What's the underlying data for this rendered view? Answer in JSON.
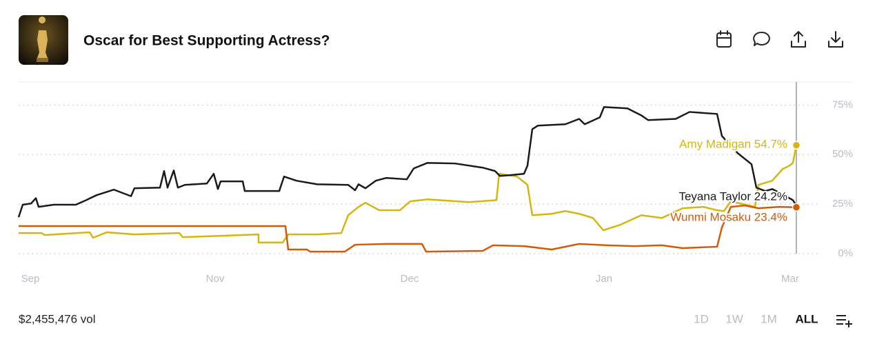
{
  "header": {
    "title": "Oscar for Best Supporting Actress?"
  },
  "chart_data": {
    "type": "line",
    "xlim": [
      0,
      1128
    ],
    "xticks": [
      {
        "value": 17,
        "label": "Sep"
      },
      {
        "value": 285,
        "label": "Nov"
      },
      {
        "value": 567,
        "label": "Dec"
      },
      {
        "value": 849,
        "label": "Jan"
      },
      {
        "value": 1119,
        "label": "Mar"
      }
    ],
    "ylim": [
      0,
      80
    ],
    "yticks": [
      {
        "value": 0,
        "label": "0%"
      },
      {
        "value": 25,
        "label": "25%"
      },
      {
        "value": 50,
        "label": "50%"
      },
      {
        "value": 75,
        "label": "75%"
      }
    ],
    "grid": true,
    "series": [
      {
        "name": "Amy Madigan",
        "color": "#d6b60e",
        "end_label": "54.7%",
        "x": [
          0,
          33,
          38,
          103,
          108,
          128,
          168,
          233,
          238,
          348,
          348,
          383,
          391,
          433,
          468,
          478,
          493,
          503,
          523,
          553,
          568,
          593,
          653,
          693,
          697,
          723,
          738,
          745,
          773,
          793,
          813,
          833,
          848,
          873,
          903,
          933,
          963,
          993,
          1013,
          1023,
          1033,
          1068,
          1073,
          1093,
          1108,
          1118,
          1123,
          1128
        ],
        "values": [
          10.4,
          10.4,
          9.4,
          10.8,
          8,
          10.8,
          9.7,
          10.4,
          8.3,
          9.7,
          5.6,
          5.6,
          9.7,
          9.7,
          10.4,
          19.4,
          23.6,
          25.7,
          21.9,
          21.9,
          26.4,
          27.4,
          26,
          27,
          40.3,
          38.9,
          34.7,
          19.4,
          20.1,
          21.5,
          20.1,
          18,
          11.8,
          14.6,
          19.4,
          18,
          22.9,
          23.6,
          21.9,
          21.5,
          26.4,
          23.6,
          34.7,
          36.8,
          42.7,
          44.4,
          45.8,
          54.7
        ]
      },
      {
        "name": "Teyana Taylor",
        "color": "#1a1a1a",
        "end_label": "24.2%",
        "x": [
          0,
          6,
          18,
          25,
          29,
          51,
          83,
          98,
          113,
          138,
          163,
          168,
          205,
          211,
          216,
          225,
          231,
          241,
          273,
          283,
          289,
          293,
          325,
          328,
          378,
          385,
          403,
          433,
          478,
          488,
          493,
          503,
          518,
          533,
          563,
          573,
          593,
          633,
          673,
          691,
          698,
          713,
          733,
          738,
          745,
          753,
          793,
          813,
          821,
          843,
          849,
          883,
          903,
          913,
          953,
          973,
          1013,
          1020,
          1043,
          1063,
          1070,
          1083,
          1093,
          1108,
          1123,
          1128
        ],
        "values": [
          18.4,
          24.7,
          25.3,
          28,
          23.6,
          24.7,
          24.7,
          27,
          29.5,
          32.3,
          29,
          33,
          33.3,
          41.7,
          33.3,
          42,
          33.3,
          34.7,
          35.4,
          40.3,
          32.6,
          36.5,
          36.5,
          31.6,
          31.6,
          38.9,
          36.8,
          35,
          34.7,
          32,
          35,
          33,
          36.8,
          38.2,
          37.5,
          43,
          45.8,
          45.5,
          43.4,
          41.7,
          39.2,
          39.6,
          40.3,
          44.4,
          62.8,
          64.6,
          65.3,
          68,
          65.3,
          68.8,
          74,
          73.3,
          69.8,
          67.4,
          68,
          71.5,
          70.5,
          59.4,
          50.7,
          45.1,
          33.3,
          31.6,
          32.6,
          29.9,
          27,
          24.2
        ]
      },
      {
        "name": "Wunmi Mosaku",
        "color": "#d35a06",
        "end_label": "23.4%",
        "x": [
          0,
          387,
          391,
          418,
          423,
          473,
          488,
          533,
          585,
          591,
          673,
          688,
          733,
          773,
          813,
          853,
          893,
          933,
          963,
          1013,
          1020,
          1033,
          1053,
          1073,
          1103,
          1128
        ],
        "values": [
          13.9,
          13.9,
          2.1,
          2.1,
          1,
          1,
          4.5,
          4.9,
          4.9,
          1,
          1.4,
          4.2,
          3.8,
          2.1,
          4.9,
          4.2,
          3.8,
          4.2,
          2.8,
          3.5,
          13.2,
          23.6,
          24.3,
          22.9,
          23.6,
          23.4
        ]
      }
    ]
  },
  "footer": {
    "volume": "$2,455,476 vol",
    "ranges": [
      "1D",
      "1W",
      "1M",
      "ALL"
    ]
  }
}
